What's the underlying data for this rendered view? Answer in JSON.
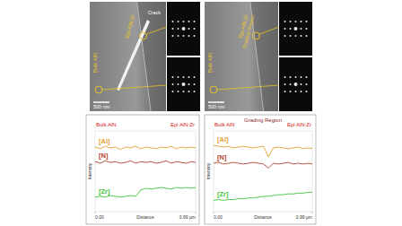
{
  "images": [
    {
      "bulk": "Bulk AlN",
      "epi": "Epi AlN:Zr",
      "extra": "Crack",
      "scale_bar": "500 nm"
    },
    {
      "bulk": "Bulk AlN",
      "epi": "Epi AlN:Zr",
      "extra": "Grading Region",
      "scale_bar": "500 nm"
    }
  ],
  "chart_data": [
    {
      "type": "line",
      "annotations": [
        "Bulk AlN",
        "Epi AlN:Zr"
      ],
      "x_label": "Distance",
      "y_label": "Intensity",
      "x": [
        0,
        0.05,
        0.1,
        0.15,
        0.2,
        0.25,
        0.3,
        0.35,
        0.4,
        0.45,
        0.5,
        0.55,
        0.6,
        0.65,
        0.7,
        0.75,
        0.8,
        0.85,
        0.9,
        0.95,
        0.99
      ],
      "series": [
        {
          "name": "[Al]",
          "color": "#e0a030",
          "values": [
            80,
            78,
            81,
            79,
            80,
            77,
            80,
            79,
            81,
            78,
            80,
            79,
            78,
            80,
            79,
            81,
            78,
            80,
            79,
            80,
            79
          ]
        },
        {
          "name": "[N]",
          "color": "#b0402a",
          "values": [
            62,
            60,
            63,
            61,
            62,
            60,
            61,
            63,
            60,
            62,
            61,
            62,
            60,
            61,
            63,
            60,
            62,
            61,
            60,
            62,
            61
          ]
        },
        {
          "name": "[Zr]",
          "color": "#3cc43c",
          "values": [
            18,
            19,
            18,
            20,
            19,
            18,
            19,
            20,
            19,
            27,
            29,
            28,
            29,
            30,
            29,
            28,
            30,
            29,
            30,
            29,
            30
          ]
        }
      ],
      "xlim": [
        0,
        0.99
      ],
      "xticks": [
        {
          "value": 0,
          "label": "0.00"
        },
        {
          "value": 0.99,
          "label": "0.99 µm"
        }
      ],
      "ylim": [
        0,
        100
      ],
      "yticks": [],
      "tick_labels": "x",
      "grid": false
    },
    {
      "type": "line",
      "annotations": [
        "Bulk AlN",
        "Grading Region",
        "Epi AlN:Zr"
      ],
      "x_label": "Distance",
      "y_label": "Intensity",
      "x": [
        0,
        0.05,
        0.1,
        0.15,
        0.2,
        0.25,
        0.3,
        0.35,
        0.4,
        0.45,
        0.5,
        0.55,
        0.6,
        0.65,
        0.7,
        0.75,
        0.8,
        0.85,
        0.9,
        0.95,
        0.99
      ],
      "series": [
        {
          "name": "[Al]",
          "color": "#e0a030",
          "values": [
            82,
            81,
            80,
            81,
            79,
            80,
            81,
            80,
            79,
            80,
            81,
            68,
            79,
            80,
            79,
            78,
            79,
            80,
            78,
            79,
            78
          ]
        },
        {
          "name": "[N]",
          "color": "#b0402a",
          "values": [
            60,
            61,
            59,
            60,
            61,
            60,
            59,
            60,
            61,
            60,
            59,
            54,
            60,
            59,
            60,
            61,
            59,
            60,
            59,
            60,
            59
          ]
        },
        {
          "name": "[Zr]",
          "color": "#3cc43c",
          "values": [
            14,
            15,
            14,
            15,
            15,
            16,
            16,
            17,
            17,
            18,
            19,
            19,
            20,
            21,
            21,
            22,
            22,
            23,
            23,
            24,
            24
          ]
        }
      ],
      "xlim": [
        0,
        0.99
      ],
      "xticks": [
        {
          "value": 0,
          "label": "0.00"
        },
        {
          "value": 0.99,
          "label": "0.99 µm"
        }
      ],
      "ylim": [
        0,
        100
      ],
      "yticks": [],
      "tick_labels": "x",
      "grid": false
    }
  ]
}
